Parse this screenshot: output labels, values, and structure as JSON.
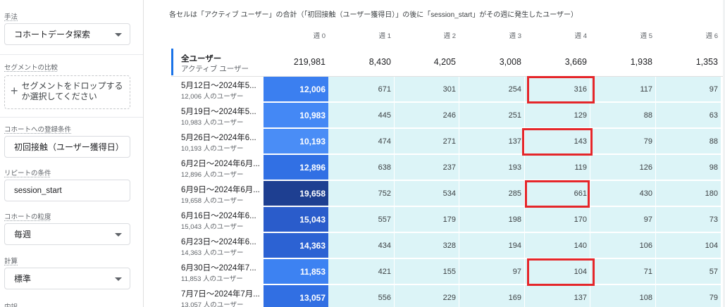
{
  "sidebar": {
    "technique_label": "手法",
    "technique_value": "コホートデータ探索",
    "segment_compare_label": "セグメントの比較",
    "segment_drop_text": "セグメントをドロップするか選択してください",
    "inclusion_label": "コホートへの登録条件",
    "inclusion_value": "初回接触（ユーザー獲得日）",
    "return_label": "リピートの条件",
    "return_value": "session_start",
    "granularity_label": "コホートの粒度",
    "granularity_value": "毎週",
    "calc_label": "計算",
    "calc_value": "標準",
    "next_label_partial": "内訳"
  },
  "report": {
    "note": "各セルは「アクティブ ユーザー」の合計（「初回接触（ユーザー獲得日）」の後に「session_start」がその週に発生したユーザー）",
    "weeks": [
      "週 0",
      "週 1",
      "週 2",
      "週 3",
      "週 4",
      "週 5",
      "週 6"
    ],
    "total": {
      "title": "全ユーザー",
      "subtitle": "アクティブ ユーザー",
      "values": [
        "219,981",
        "8,430",
        "4,205",
        "3,008",
        "3,669",
        "1,938",
        "1,353"
      ]
    },
    "rows": [
      {
        "date": "5月12日～2024年5...",
        "users": "12,006 人のユーザー",
        "values": [
          "12,006",
          "671",
          "301",
          "254",
          "316",
          "117",
          "97"
        ],
        "color": "#3b7ff0"
      },
      {
        "date": "5月19日～2024年5...",
        "users": "10,983 人のユーザー",
        "values": [
          "10,983",
          "445",
          "246",
          "251",
          "129",
          "88",
          "63"
        ],
        "color": "#4488f5"
      },
      {
        "date": "5月26日～2024年6...",
        "users": "10,193 人のユーザー",
        "values": [
          "10,193",
          "474",
          "271",
          "137",
          "143",
          "79",
          "88"
        ],
        "color": "#4a8df6"
      },
      {
        "date": "6月2日～2024年6月...",
        "users": "12,896 人のユーザー",
        "values": [
          "12,896",
          "638",
          "237",
          "193",
          "119",
          "126",
          "98"
        ],
        "color": "#3170e4"
      },
      {
        "date": "6月9日～2024年6月...",
        "users": "19,658 人のユーザー",
        "values": [
          "19,658",
          "752",
          "534",
          "285",
          "661",
          "430",
          "180"
        ],
        "color": "#1e3f91"
      },
      {
        "date": "6月16日～2024年6...",
        "users": "15,043 人のユーザー",
        "values": [
          "15,043",
          "557",
          "179",
          "198",
          "170",
          "97",
          "73"
        ],
        "color": "#2a5ccb"
      },
      {
        "date": "6月23日～2024年6...",
        "users": "14,363 人のユーザー",
        "values": [
          "14,363",
          "434",
          "328",
          "194",
          "140",
          "106",
          "104"
        ],
        "color": "#2c62d3"
      },
      {
        "date": "6月30日～2024年7...",
        "users": "11,853 人のユーザー",
        "values": [
          "11,853",
          "421",
          "155",
          "97",
          "104",
          "71",
          "57"
        ],
        "color": "#3d82f2"
      },
      {
        "date": "7月7日～2024年7月...",
        "users": "13,057 人のユーザー",
        "values": [
          "13,057",
          "556",
          "229",
          "169",
          "137",
          "108",
          "79"
        ],
        "color": "#316fe3"
      }
    ],
    "highlight_color": "#e5262a",
    "heat_color": "#dcf4f7"
  }
}
